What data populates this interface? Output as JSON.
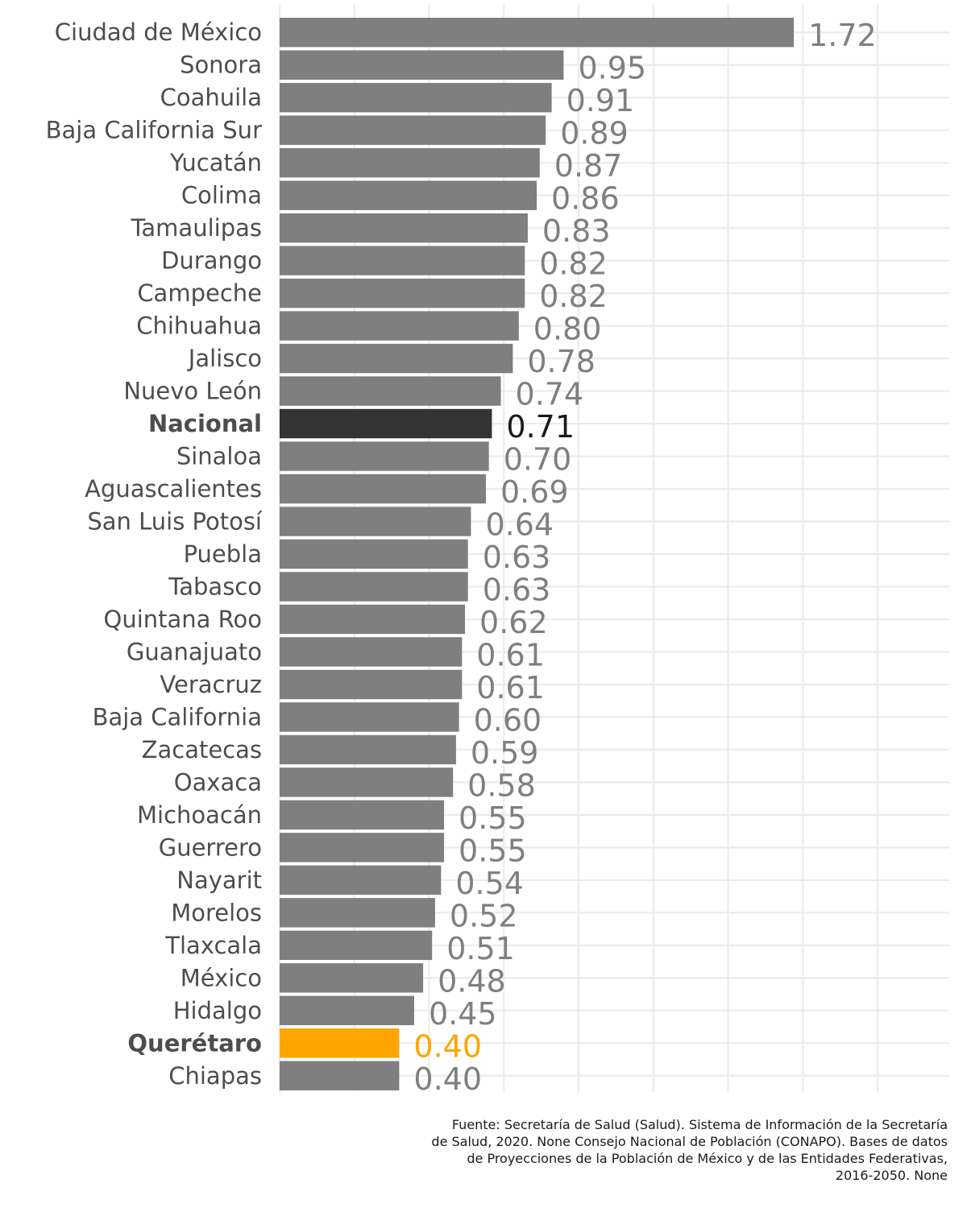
{
  "chart_data": {
    "type": "bar",
    "orientation": "horizontal",
    "categories": [
      "Ciudad de México",
      "Sonora",
      "Coahuila",
      "Baja California Sur",
      "Yucatán",
      "Colima",
      "Tamaulipas",
      "Durango",
      "Campeche",
      "Chihuahua",
      "Jalisco",
      "Nuevo León",
      "Nacional",
      "Sinaloa",
      "Aguascalientes",
      "San Luis Potosí",
      "Puebla",
      "Tabasco",
      "Quintana Roo",
      "Guanajuato",
      "Veracruz",
      "Baja California",
      "Zacatecas",
      "Oaxaca",
      "Michoacán",
      "Guerrero",
      "Nayarit",
      "Morelos",
      "Tlaxcala",
      "México",
      "Hidalgo",
      "Querétaro",
      "Chiapas"
    ],
    "values": [
      1.72,
      0.95,
      0.91,
      0.89,
      0.87,
      0.86,
      0.83,
      0.82,
      0.82,
      0.8,
      0.78,
      0.74,
      0.71,
      0.7,
      0.69,
      0.64,
      0.63,
      0.63,
      0.62,
      0.61,
      0.61,
      0.6,
      0.59,
      0.58,
      0.55,
      0.55,
      0.54,
      0.52,
      0.51,
      0.48,
      0.45,
      0.4,
      0.4
    ],
    "value_labels": [
      "1.72",
      "0.95",
      "0.91",
      "0.89",
      "0.87",
      "0.86",
      "0.83",
      "0.82",
      "0.82",
      "0.80",
      "0.78",
      "0.74",
      "0.71",
      "0.70",
      "0.69",
      "0.64",
      "0.63",
      "0.63",
      "0.62",
      "0.61",
      "0.61",
      "0.60",
      "0.59",
      "0.58",
      "0.55",
      "0.55",
      "0.54",
      "0.52",
      "0.51",
      "0.48",
      "0.45",
      "0.40",
      "0.40"
    ],
    "xlim": [
      0,
      2.2
    ],
    "grid": true,
    "x_ticks_shown": false,
    "colors": {
      "default_bar": "#7f7f7f",
      "default_text": "#7f7f7f",
      "highlight_national_bar": "#333333",
      "highlight_national_text": "#1a1a1a",
      "highlight_state_bar": "#ffa500",
      "highlight_state_text": "#ffa500",
      "category_text": "#4d4d4d",
      "grid": "#ebebeb"
    },
    "highlights": {
      "Nacional": "national",
      "Querétaro": "state"
    }
  },
  "caption": {
    "lines": [
      "Fuente: Secretaría de Salud (Salud). Sistema de Información de la Secretaría",
      "de Salud, 2020. None Consejo Nacional de Población (CONAPO). Bases de datos",
      "de Proyecciones de la Población de México y de las Entidades Federativas,",
      "2016-2050. None"
    ]
  }
}
